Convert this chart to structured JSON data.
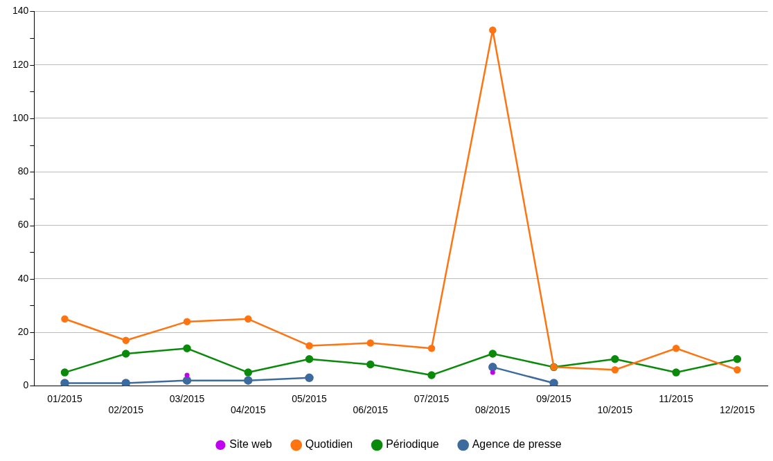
{
  "chart_data": {
    "type": "line",
    "categories": [
      "01/2015",
      "02/2015",
      "03/2015",
      "04/2015",
      "05/2015",
      "06/2015",
      "07/2015",
      "08/2015",
      "09/2015",
      "10/2015",
      "11/2015",
      "12/2015"
    ],
    "series": [
      {
        "name": "Agence de presse",
        "color": "#3e6b9e",
        "values": [
          1,
          1,
          2,
          2,
          3,
          null,
          null,
          7,
          1,
          null,
          null,
          null
        ]
      },
      {
        "name": "Périodique",
        "color": "#0a8a0a",
        "values": [
          5,
          12,
          14,
          5,
          10,
          8,
          4,
          12,
          7,
          10,
          5,
          10
        ]
      },
      {
        "name": "Quotidien",
        "color": "#ff7410",
        "values": [
          25,
          17,
          24,
          25,
          15,
          16,
          14,
          133,
          7,
          6,
          14,
          6
        ]
      },
      {
        "name": "Site web",
        "type": "scatter",
        "color": "#c000f0",
        "values": [
          null,
          null,
          4,
          null,
          null,
          null,
          null,
          5,
          null,
          null,
          null,
          null
        ]
      }
    ],
    "ylim": [
      0,
      140
    ],
    "yticks": [
      0,
      {
        "value": 10,
        "label": null
      },
      20,
      {
        "value": 30,
        "label": null
      },
      40,
      {
        "value": 50,
        "label": null
      },
      60,
      {
        "value": 70,
        "label": null
      },
      80,
      {
        "value": 90,
        "label": null
      },
      100,
      {
        "value": 110,
        "label": null
      },
      120,
      {
        "value": 130,
        "label": null
      },
      140
    ],
    "grid": "y",
    "legend": "bottom",
    "marker": "circle",
    "line_style": "solid"
  }
}
